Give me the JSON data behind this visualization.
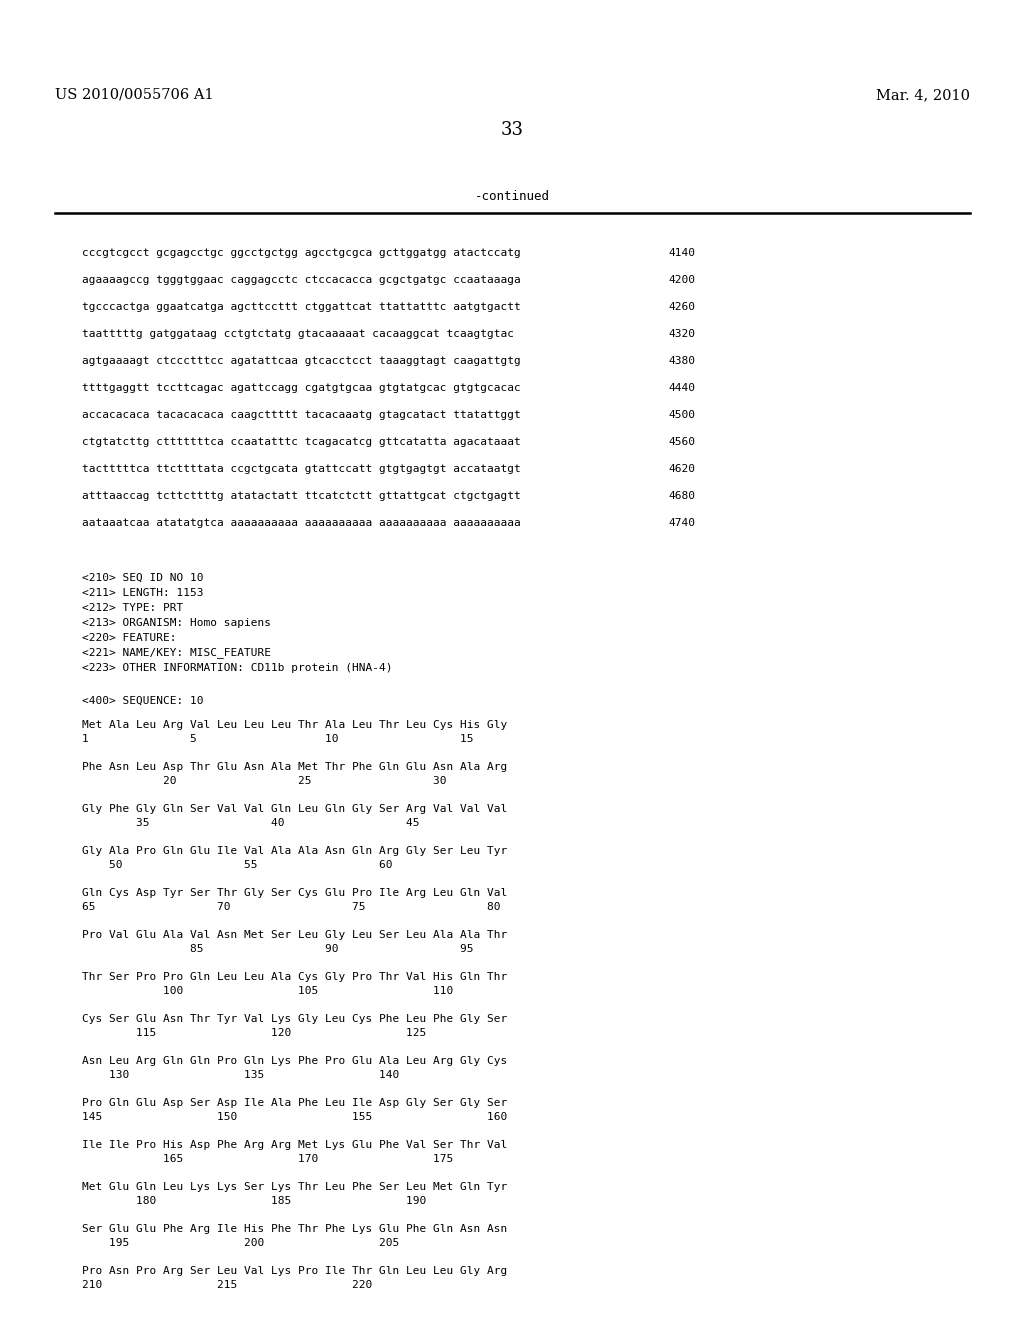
{
  "header_left": "US 2010/0055706 A1",
  "header_right": "Mar. 4, 2010",
  "page_number": "33",
  "continued_label": "-continued",
  "background_color": "#ffffff",
  "text_color": "#000000",
  "sequence_lines": [
    [
      "cccgtcgcct gcgagcctgc ggcctgctgg agcctgcgca gcttggatgg atactccatg",
      "4140"
    ],
    [
      "agaaaagccg tgggtggaac caggagcctc ctccacacca gcgctgatgc ccaataaaga",
      "4200"
    ],
    [
      "tgcccactga ggaatcatga agcttccttt ctggattcat ttattatttc aatgtgactt",
      "4260"
    ],
    [
      "taatttttg gatggataag cctgtctatg gtacaaaaat cacaaggcat tcaagtgtac",
      "4320"
    ],
    [
      "agtgaaaagt ctccctttcc agatattcaa gtcacctcct taaaggtagt caagattgtg",
      "4380"
    ],
    [
      "ttttgaggtt tccttcagac agattccagg cgatgtgcaa gtgtatgcac gtgtgcacac",
      "4440"
    ],
    [
      "accacacaca tacacacaca caagcttttt tacacaaatg gtagcatact ttatattggt",
      "4500"
    ],
    [
      "ctgtatcttg ctttttttca ccaatatttc tcagacatcg gttcatatta agacataaat",
      "4560"
    ],
    [
      "tactttttca ttcttttata ccgctgcata gtattccatt gtgtgagtgt accataatgt",
      "4620"
    ],
    [
      "atttaaccag tcttcttttg atatactatt ttcatctctt gttattgcat ctgctgagtt",
      "4680"
    ],
    [
      "aataaatcaa atatatgtca aaaaaaaaaa aaaaaaaaaa aaaaaaaaaa aaaaaaaaaa",
      "4740"
    ]
  ],
  "metadata_lines": [
    "<210> SEQ ID NO 10",
    "<211> LENGTH: 1153",
    "<212> TYPE: PRT",
    "<213> ORGANISM: Homo sapiens",
    "<220> FEATURE:",
    "<221> NAME/KEY: MISC_FEATURE",
    "<223> OTHER INFORMATION: CD11b protein (HNA-4)"
  ],
  "sequence_label": "<400> SEQUENCE: 10",
  "protein_blocks": [
    {
      "aa": "Met Ala Leu Arg Val Leu Leu Leu Thr Ala Leu Thr Leu Cys His Gly",
      "num": "1               5                   10                  15"
    },
    {
      "aa": "Phe Asn Leu Asp Thr Glu Asn Ala Met Thr Phe Gln Glu Asn Ala Arg",
      "num": "            20                  25                  30"
    },
    {
      "aa": "Gly Phe Gly Gln Ser Val Val Gln Leu Gln Gly Ser Arg Val Val Val",
      "num": "        35                  40                  45"
    },
    {
      "aa": "Gly Ala Pro Gln Glu Ile Val Ala Ala Asn Gln Arg Gly Ser Leu Tyr",
      "num": "    50                  55                  60"
    },
    {
      "aa": "Gln Cys Asp Tyr Ser Thr Gly Ser Cys Glu Pro Ile Arg Leu Gln Val",
      "num": "65                  70                  75                  80"
    },
    {
      "aa": "Pro Val Glu Ala Val Asn Met Ser Leu Gly Leu Ser Leu Ala Ala Thr",
      "num": "                85                  90                  95"
    },
    {
      "aa": "Thr Ser Pro Pro Gln Leu Leu Ala Cys Gly Pro Thr Val His Gln Thr",
      "num": "            100                 105                 110"
    },
    {
      "aa": "Cys Ser Glu Asn Thr Tyr Val Lys Gly Leu Cys Phe Leu Phe Gly Ser",
      "num": "        115                 120                 125"
    },
    {
      "aa": "Asn Leu Arg Gln Gln Pro Gln Lys Phe Pro Glu Ala Leu Arg Gly Cys",
      "num": "    130                 135                 140"
    },
    {
      "aa": "Pro Gln Glu Asp Ser Asp Ile Ala Phe Leu Ile Asp Gly Ser Gly Ser",
      "num": "145                 150                 155                 160"
    },
    {
      "aa": "Ile Ile Pro His Asp Phe Arg Arg Met Lys Glu Phe Val Ser Thr Val",
      "num": "            165                 170                 175"
    },
    {
      "aa": "Met Glu Gln Leu Lys Lys Ser Lys Thr Leu Phe Ser Leu Met Gln Tyr",
      "num": "        180                 185                 190"
    },
    {
      "aa": "Ser Glu Glu Phe Arg Ile His Phe Thr Phe Lys Glu Phe Gln Asn Asn",
      "num": "    195                 200                 205"
    },
    {
      "aa": "Pro Asn Pro Arg Ser Leu Val Lys Pro Ile Thr Gln Leu Leu Gly Arg",
      "num": "210                 215                 220"
    }
  ]
}
